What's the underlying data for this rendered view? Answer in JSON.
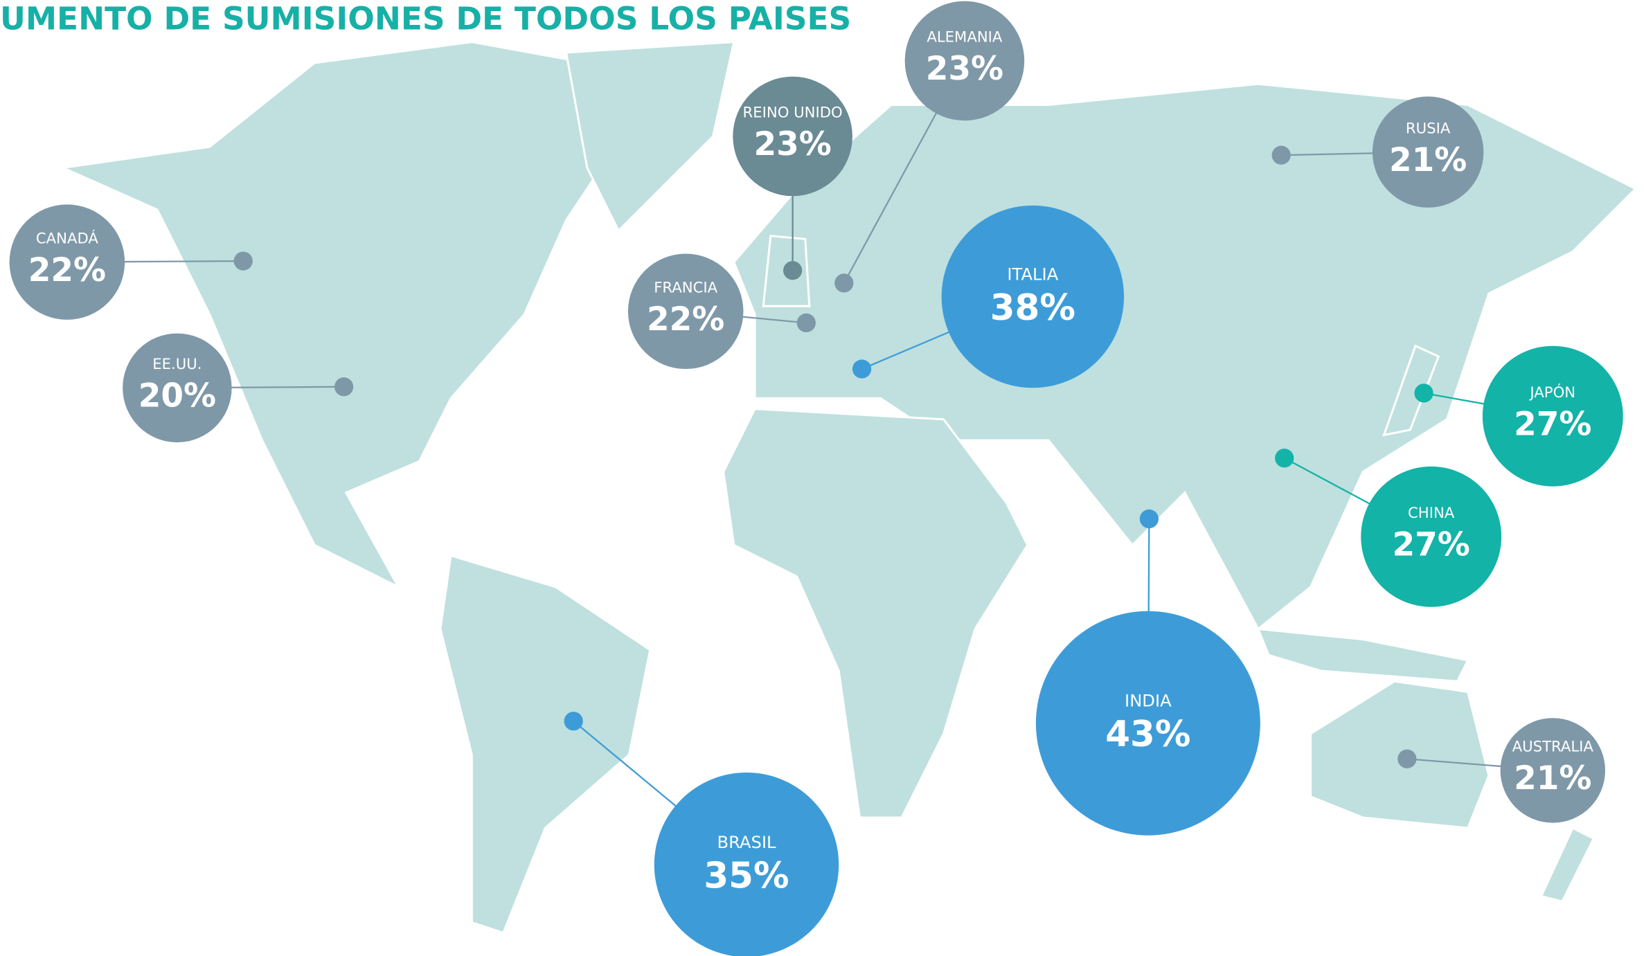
{
  "title": "UMENTO DE SUMISIONES DE TODOS LOS PAISES",
  "countries": [
    {
      "name": "CANADÁ",
      "value": "22%",
      "color": "#7f98a8"
    },
    {
      "name": "EE.UU.",
      "value": "20%",
      "color": "#7f98a8"
    },
    {
      "name": "REINO UNIDO",
      "value": "23%",
      "color": "#6a8a94"
    },
    {
      "name": "ALEMANIA",
      "value": "23%",
      "color": "#7f98a8"
    },
    {
      "name": "FRANCIA",
      "value": "22%",
      "color": "#7f98a8"
    },
    {
      "name": "ITALIA",
      "value": "38%",
      "color": "#3d9cd8"
    },
    {
      "name": "RUSIA",
      "value": "21%",
      "color": "#7f98a8"
    },
    {
      "name": "JAPÓN",
      "value": "27%",
      "color": "#13b3a8"
    },
    {
      "name": "CHINA",
      "value": "27%",
      "color": "#13b3a8"
    },
    {
      "name": "INDIA",
      "value": "43%",
      "color": "#3d9cd8"
    },
    {
      "name": "BRASIL",
      "value": "35%",
      "color": "#3d9cd8"
    },
    {
      "name": "AUSTRALIA",
      "value": "21%",
      "color": "#7f98a8"
    }
  ]
}
